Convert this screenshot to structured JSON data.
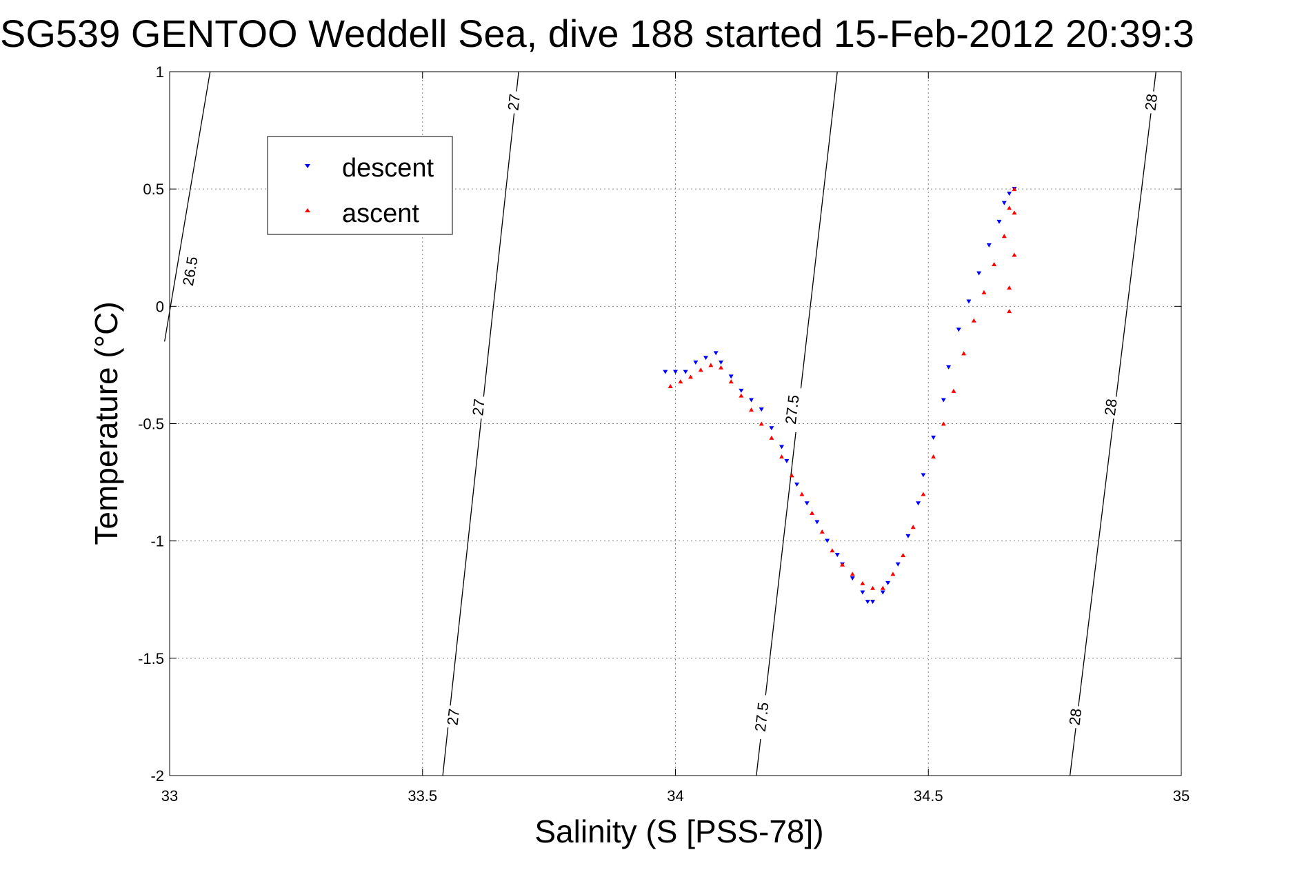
{
  "chart_data": {
    "type": "scatter",
    "title": "SG539 GENTOO Weddell Sea, dive 188 started 15-Feb-2012 20:39:3",
    "xlabel": "Salinity (S [PSS-78])",
    "ylabel": "Temperature (°C)",
    "xlim": [
      33,
      35
    ],
    "ylim": [
      -2,
      1
    ],
    "xticks": [
      33,
      33.5,
      34,
      34.5,
      35
    ],
    "xtick_labels": [
      "33",
      "33.5",
      "34",
      "34.5",
      "35"
    ],
    "yticks": [
      1,
      0.5,
      0,
      -0.5,
      -1,
      -1.5,
      -2
    ],
    "ytick_labels": [
      "1",
      "0.5",
      "0",
      "-0.5",
      "-1",
      "-1.5",
      "-2"
    ],
    "grid": true,
    "legend_position": "top-left",
    "series": [
      {
        "name": "descent",
        "color": "#0000ff",
        "marker": "triangle-down",
        "x": [
          33.98,
          34.0,
          34.02,
          34.04,
          34.06,
          34.08,
          34.09,
          34.11,
          34.13,
          34.15,
          34.17,
          34.19,
          34.21,
          34.22,
          34.24,
          34.26,
          34.28,
          34.3,
          34.32,
          34.33,
          34.35,
          34.37,
          34.38,
          34.39,
          34.41,
          34.42,
          34.44,
          34.46,
          34.48,
          34.49,
          34.51,
          34.53,
          34.54,
          34.56,
          34.58,
          34.6,
          34.62,
          34.64,
          34.65,
          34.66,
          34.67
        ],
        "y": [
          -0.28,
          -0.28,
          -0.28,
          -0.24,
          -0.22,
          -0.2,
          -0.24,
          -0.3,
          -0.36,
          -0.4,
          -0.44,
          -0.52,
          -0.6,
          -0.66,
          -0.76,
          -0.84,
          -0.92,
          -1.0,
          -1.06,
          -1.1,
          -1.16,
          -1.22,
          -1.26,
          -1.26,
          -1.22,
          -1.18,
          -1.1,
          -0.98,
          -0.84,
          -0.72,
          -0.56,
          -0.4,
          -0.26,
          -0.1,
          0.02,
          0.14,
          0.26,
          0.36,
          0.44,
          0.48,
          0.5
        ]
      },
      {
        "name": "ascent",
        "color": "#ff0000",
        "marker": "triangle-up",
        "x": [
          33.99,
          34.01,
          34.03,
          34.05,
          34.07,
          34.09,
          34.11,
          34.13,
          34.15,
          34.17,
          34.19,
          34.21,
          34.23,
          34.25,
          34.27,
          34.29,
          34.31,
          34.33,
          34.35,
          34.37,
          34.39,
          34.41,
          34.43,
          34.45,
          34.47,
          34.49,
          34.51,
          34.53,
          34.55,
          34.57,
          34.59,
          34.61,
          34.63,
          34.65,
          34.66,
          34.67,
          34.67,
          34.67,
          34.66,
          34.66
        ],
        "y": [
          -0.34,
          -0.32,
          -0.3,
          -0.27,
          -0.25,
          -0.26,
          -0.32,
          -0.38,
          -0.44,
          -0.5,
          -0.56,
          -0.64,
          -0.72,
          -0.8,
          -0.88,
          -0.96,
          -1.04,
          -1.1,
          -1.14,
          -1.18,
          -1.2,
          -1.2,
          -1.14,
          -1.06,
          -0.94,
          -0.8,
          -0.64,
          -0.5,
          -0.36,
          -0.2,
          -0.06,
          0.06,
          0.18,
          0.3,
          0.42,
          0.5,
          0.4,
          0.22,
          0.08,
          -0.02
        ]
      }
    ],
    "density_contours": [
      {
        "label": "26.5",
        "x": [
          32.99,
          33.08
        ],
        "y": [
          -0.15,
          1.0
        ],
        "label_positions": [
          [
            33.04,
            0.15
          ]
        ]
      },
      {
        "label": "27",
        "x": [
          33.54,
          33.69
        ],
        "y": [
          -2.0,
          1.0
        ],
        "label_positions": [
          [
            33.56,
            -1.75
          ],
          [
            33.61,
            -0.43
          ],
          [
            33.68,
            0.87
          ]
        ]
      },
      {
        "label": "27.5",
        "x": [
          34.16,
          34.32
        ],
        "y": [
          -2.0,
          1.0
        ],
        "label_positions": [
          [
            34.17,
            -1.75
          ],
          [
            34.23,
            -0.44
          ]
        ]
      },
      {
        "label": "28",
        "x": [
          34.78,
          34.95
        ],
        "y": [
          -2.0,
          1.0
        ],
        "label_positions": [
          [
            34.79,
            -1.75
          ],
          [
            34.86,
            -0.43
          ],
          [
            34.94,
            0.87
          ]
        ]
      }
    ]
  }
}
